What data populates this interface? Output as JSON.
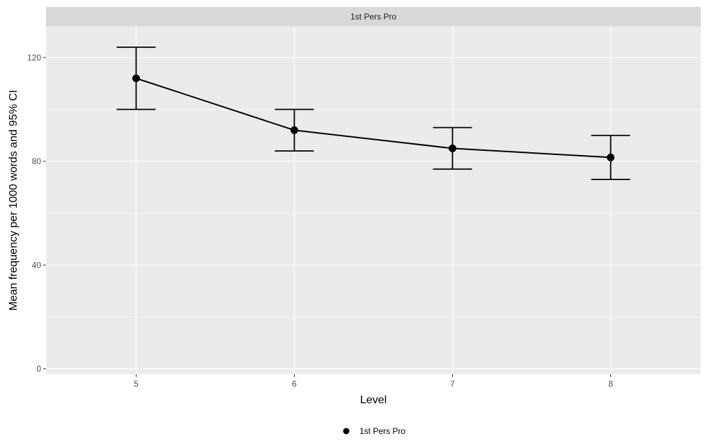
{
  "chart_data": {
    "type": "line",
    "facet_label": "1st Pers Pro",
    "xlabel": "Level",
    "ylabel": "Mean frequency per 1000 words and 95% CI",
    "x": [
      5,
      6,
      7,
      8
    ],
    "series": [
      {
        "name": "1st Pers Pro",
        "values": [
          112,
          92,
          85,
          81.5
        ],
        "ci_lower": [
          100,
          84,
          77,
          73
        ],
        "ci_upper": [
          124,
          100,
          93,
          90
        ]
      }
    ],
    "xticks": [
      "5",
      "6",
      "7",
      "8"
    ],
    "yticks": [
      0,
      40,
      80,
      120
    ],
    "ylim": [
      -2,
      132
    ],
    "grid": true,
    "legend_position": "bottom",
    "colors": {
      "panel": "#ebebeb",
      "strip": "#d9d9d9",
      "grid": "#ffffff",
      "series": "#000000"
    }
  }
}
